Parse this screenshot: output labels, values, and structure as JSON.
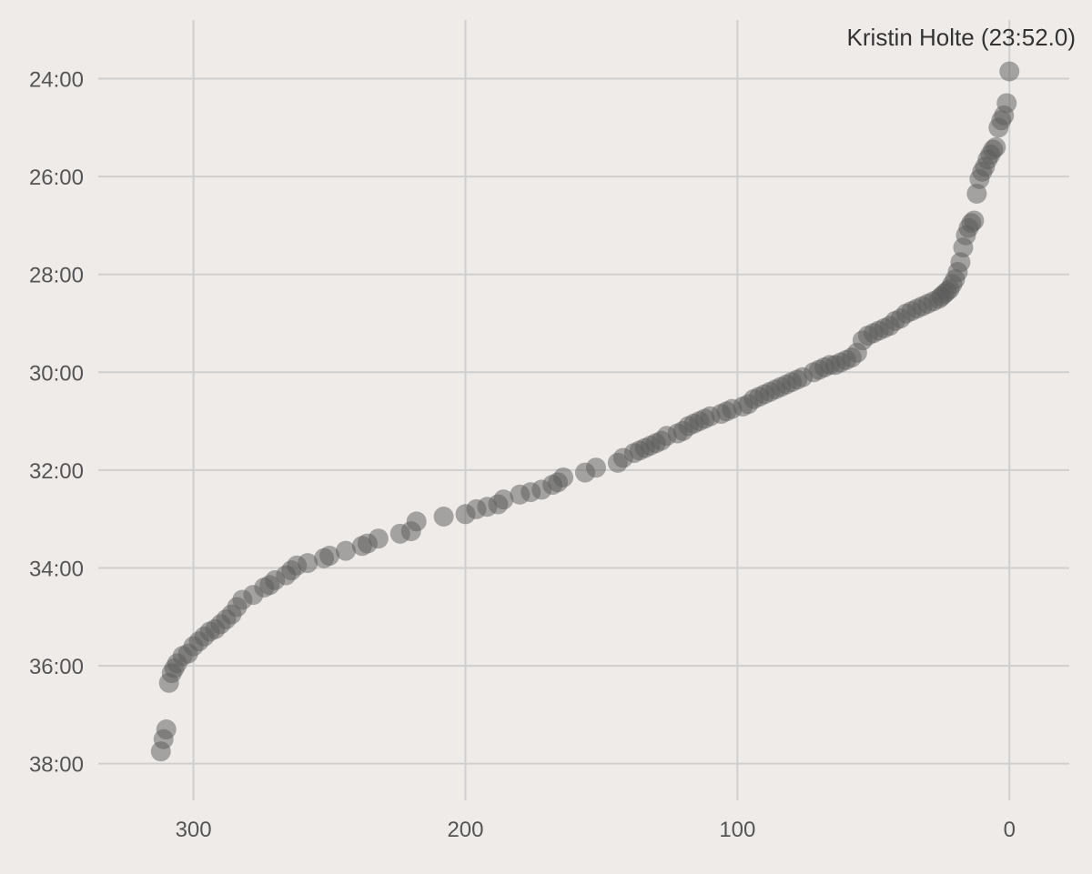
{
  "chart_data": {
    "type": "scatter",
    "title": "",
    "xlabel": "",
    "ylabel": "",
    "x_reversed": true,
    "y_reversed": true,
    "xlim": [
      335,
      -22
    ],
    "ylim": [
      22.8,
      38.75
    ],
    "x_ticks": [
      {
        "value": 300,
        "label": "300"
      },
      {
        "value": 200,
        "label": "200"
      },
      {
        "value": 100,
        "label": "100"
      },
      {
        "value": 0,
        "label": "0"
      }
    ],
    "y_ticks": [
      {
        "value": 24,
        "label": "24:00"
      },
      {
        "value": 26,
        "label": "26:00"
      },
      {
        "value": 28,
        "label": "28:00"
      },
      {
        "value": 30,
        "label": "30:00"
      },
      {
        "value": 32,
        "label": "32:00"
      },
      {
        "value": 34,
        "label": "34:00"
      },
      {
        "value": 36,
        "label": "36:00"
      },
      {
        "value": 38,
        "label": "38:00"
      }
    ],
    "grid": true,
    "annotation": "Kristin Holte (23:52.0)",
    "marker_color": "#595959",
    "background": "#efebe9",
    "grid_color": "#cfcfcf",
    "points": [
      [
        0,
        23.85
      ],
      [
        1,
        24.5
      ],
      [
        2,
        24.75
      ],
      [
        3,
        24.85
      ],
      [
        4,
        25.0
      ],
      [
        5,
        25.4
      ],
      [
        6,
        25.45
      ],
      [
        7,
        25.55
      ],
      [
        8,
        25.65
      ],
      [
        9,
        25.8
      ],
      [
        10,
        25.9
      ],
      [
        11,
        26.05
      ],
      [
        12,
        26.35
      ],
      [
        13,
        26.9
      ],
      [
        14,
        26.95
      ],
      [
        15,
        27.05
      ],
      [
        16,
        27.2
      ],
      [
        17,
        27.45
      ],
      [
        18,
        27.75
      ],
      [
        19,
        27.95
      ],
      [
        20,
        28.1
      ],
      [
        21,
        28.2
      ],
      [
        22,
        28.3
      ],
      [
        23,
        28.35
      ],
      [
        24,
        28.4
      ],
      [
        25,
        28.45
      ],
      [
        26,
        28.5
      ],
      [
        28,
        28.55
      ],
      [
        30,
        28.6
      ],
      [
        32,
        28.65
      ],
      [
        34,
        28.7
      ],
      [
        36,
        28.75
      ],
      [
        38,
        28.8
      ],
      [
        40,
        28.9
      ],
      [
        42,
        28.95
      ],
      [
        44,
        29.05
      ],
      [
        46,
        29.1
      ],
      [
        48,
        29.15
      ],
      [
        50,
        29.2
      ],
      [
        52,
        29.25
      ],
      [
        54,
        29.35
      ],
      [
        56,
        29.6
      ],
      [
        58,
        29.7
      ],
      [
        60,
        29.75
      ],
      [
        62,
        29.8
      ],
      [
        64,
        29.85
      ],
      [
        66,
        29.85
      ],
      [
        68,
        29.9
      ],
      [
        70,
        29.95
      ],
      [
        72,
        30.0
      ],
      [
        76,
        30.1
      ],
      [
        78,
        30.15
      ],
      [
        80,
        30.2
      ],
      [
        82,
        30.25
      ],
      [
        84,
        30.3
      ],
      [
        86,
        30.35
      ],
      [
        88,
        30.4
      ],
      [
        90,
        30.45
      ],
      [
        92,
        30.5
      ],
      [
        94,
        30.55
      ],
      [
        96,
        30.65
      ],
      [
        98,
        30.7
      ],
      [
        102,
        30.75
      ],
      [
        104,
        30.8
      ],
      [
        106,
        30.85
      ],
      [
        110,
        30.9
      ],
      [
        112,
        30.95
      ],
      [
        114,
        31.0
      ],
      [
        116,
        31.05
      ],
      [
        118,
        31.1
      ],
      [
        120,
        31.2
      ],
      [
        122,
        31.25
      ],
      [
        126,
        31.3
      ],
      [
        128,
        31.4
      ],
      [
        130,
        31.45
      ],
      [
        132,
        31.5
      ],
      [
        134,
        31.55
      ],
      [
        136,
        31.6
      ],
      [
        138,
        31.65
      ],
      [
        142,
        31.75
      ],
      [
        144,
        31.85
      ],
      [
        152,
        31.95
      ],
      [
        156,
        32.05
      ],
      [
        164,
        32.15
      ],
      [
        166,
        32.25
      ],
      [
        168,
        32.3
      ],
      [
        172,
        32.4
      ],
      [
        176,
        32.45
      ],
      [
        180,
        32.5
      ],
      [
        186,
        32.6
      ],
      [
        188,
        32.7
      ],
      [
        192,
        32.75
      ],
      [
        196,
        32.8
      ],
      [
        200,
        32.9
      ],
      [
        208,
        32.95
      ],
      [
        218,
        33.05
      ],
      [
        220,
        33.25
      ],
      [
        224,
        33.3
      ],
      [
        232,
        33.4
      ],
      [
        236,
        33.5
      ],
      [
        238,
        33.55
      ],
      [
        244,
        33.65
      ],
      [
        250,
        33.75
      ],
      [
        252,
        33.8
      ],
      [
        258,
        33.9
      ],
      [
        262,
        33.95
      ],
      [
        264,
        34.05
      ],
      [
        266,
        34.15
      ],
      [
        270,
        34.25
      ],
      [
        272,
        34.35
      ],
      [
        274,
        34.4
      ],
      [
        278,
        34.55
      ],
      [
        282,
        34.65
      ],
      [
        284,
        34.8
      ],
      [
        286,
        34.95
      ],
      [
        288,
        35.05
      ],
      [
        290,
        35.15
      ],
      [
        292,
        35.25
      ],
      [
        294,
        35.3
      ],
      [
        296,
        35.4
      ],
      [
        298,
        35.5
      ],
      [
        300,
        35.6
      ],
      [
        302,
        35.75
      ],
      [
        304,
        35.8
      ],
      [
        306,
        35.95
      ],
      [
        307,
        36.05
      ],
      [
        308,
        36.15
      ],
      [
        309,
        36.35
      ],
      [
        310,
        37.3
      ],
      [
        311,
        37.5
      ],
      [
        312,
        37.75
      ]
    ]
  }
}
